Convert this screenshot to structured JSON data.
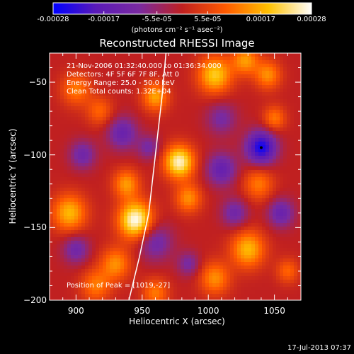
{
  "figure": {
    "title": "Reconstructed RHESSI Image",
    "colorbar": {
      "ticks": [
        "-0.00028",
        "-0.00017",
        "-5.5e-05",
        "5.5e-05",
        "0.00017",
        "0.00028"
      ],
      "tick_values": [
        -0.00028,
        -0.00017,
        -5.5e-05,
        5.5e-05,
        0.00017,
        0.00028
      ],
      "range": [
        -0.00028,
        0.00028
      ],
      "unit": "(photons cm⁻² s⁻¹ asec⁻²)",
      "colors": [
        "#0000ff",
        "#5a1ab8",
        "#7a2aa0",
        "#c02020",
        "#ff5a00",
        "#ffc000",
        "#ffffff"
      ]
    },
    "annotations": {
      "time": "21-Nov-2006 01:32:40.000 to 01:36:34.000",
      "detectors": "Detectors: 4F 5F 6F 7F 8F, Att 0",
      "energy": "Energy Range: 25.0 - 50.0 keV",
      "clean": "Clean    Total counts: 1.32E+04"
    },
    "peak_label": "Position of Peak = [1019,-27]",
    "xlabel": "Heliocentric X (arcsec)",
    "ylabel": "Heliocentric Y (arcsec)",
    "footer": "17-Jul-2013 07:37"
  },
  "chart_data": {
    "type": "heatmap",
    "title": "Reconstructed RHESSI Image",
    "xlabel": "Heliocentric X (arcsec)",
    "ylabel": "Heliocentric Y (arcsec)",
    "xlim": [
      880,
      1070
    ],
    "ylim": [
      -200,
      -30
    ],
    "x_ticks": [
      900,
      950,
      1000,
      1050
    ],
    "y_ticks": [
      -50,
      -100,
      -150,
      -200
    ],
    "peak_position": [
      1019,
      -27
    ],
    "blob_sources": [
      {
        "x": 895,
        "y": -140,
        "sigma": 9,
        "value": 0.00018
      },
      {
        "x": 900,
        "y": -55,
        "sigma": 8,
        "value": 0.00012
      },
      {
        "x": 918,
        "y": -70,
        "sigma": 7,
        "value": 0.0001
      },
      {
        "x": 945,
        "y": -145,
        "sigma": 9,
        "value": 0.00028
      },
      {
        "x": 938,
        "y": -120,
        "sigma": 7,
        "value": 0.00015
      },
      {
        "x": 930,
        "y": -175,
        "sigma": 8,
        "value": 0.00014
      },
      {
        "x": 915,
        "y": -190,
        "sigma": 8,
        "value": 0.00012
      },
      {
        "x": 978,
        "y": -105,
        "sigma": 8,
        "value": 0.00026
      },
      {
        "x": 985,
        "y": -130,
        "sigma": 7,
        "value": 0.00014
      },
      {
        "x": 960,
        "y": -60,
        "sigma": 7,
        "value": 0.00016
      },
      {
        "x": 1005,
        "y": -45,
        "sigma": 9,
        "value": 0.0002
      },
      {
        "x": 1028,
        "y": -35,
        "sigma": 7,
        "value": 0.00015
      },
      {
        "x": 1045,
        "y": -45,
        "sigma": 7,
        "value": 0.00014
      },
      {
        "x": 1038,
        "y": -120,
        "sigma": 8,
        "value": 0.00012
      },
      {
        "x": 1050,
        "y": -75,
        "sigma": 6,
        "value": 0.00012
      },
      {
        "x": 1030,
        "y": -165,
        "sigma": 9,
        "value": 0.00018
      },
      {
        "x": 1005,
        "y": -185,
        "sigma": 8,
        "value": 0.00014
      },
      {
        "x": 960,
        "y": -195,
        "sigma": 7,
        "value": 0.00012
      },
      {
        "x": 1060,
        "y": -180,
        "sigma": 6,
        "value": 0.0001
      },
      {
        "x": 1040,
        "y": -95,
        "sigma": 8,
        "value": -0.00026
      },
      {
        "x": 1010,
        "y": -110,
        "sigma": 8,
        "value": -0.00015
      },
      {
        "x": 935,
        "y": -85,
        "sigma": 8,
        "value": -0.00014
      },
      {
        "x": 905,
        "y": -100,
        "sigma": 7,
        "value": -0.00012
      },
      {
        "x": 1010,
        "y": -75,
        "sigma": 8,
        "value": -0.0001
      },
      {
        "x": 960,
        "y": -160,
        "sigma": 9,
        "value": -0.00012
      },
      {
        "x": 1055,
        "y": -140,
        "sigma": 7,
        "value": -0.00014
      },
      {
        "x": 900,
        "y": -165,
        "sigma": 7,
        "value": -0.00012
      },
      {
        "x": 1020,
        "y": -140,
        "sigma": 7,
        "value": -0.00012
      },
      {
        "x": 985,
        "y": -175,
        "sigma": 6,
        "value": -0.0001
      },
      {
        "x": 955,
        "y": -95,
        "sigma": 6,
        "value": -0.0001
      }
    ],
    "limb_curve": [
      [
        968,
        -30
      ],
      [
        965,
        -60
      ],
      [
        960,
        -100
      ],
      [
        955,
        -140
      ],
      [
        948,
        -170
      ],
      [
        940,
        -200
      ]
    ],
    "marker": {
      "x": 1040,
      "y": -95
    }
  }
}
